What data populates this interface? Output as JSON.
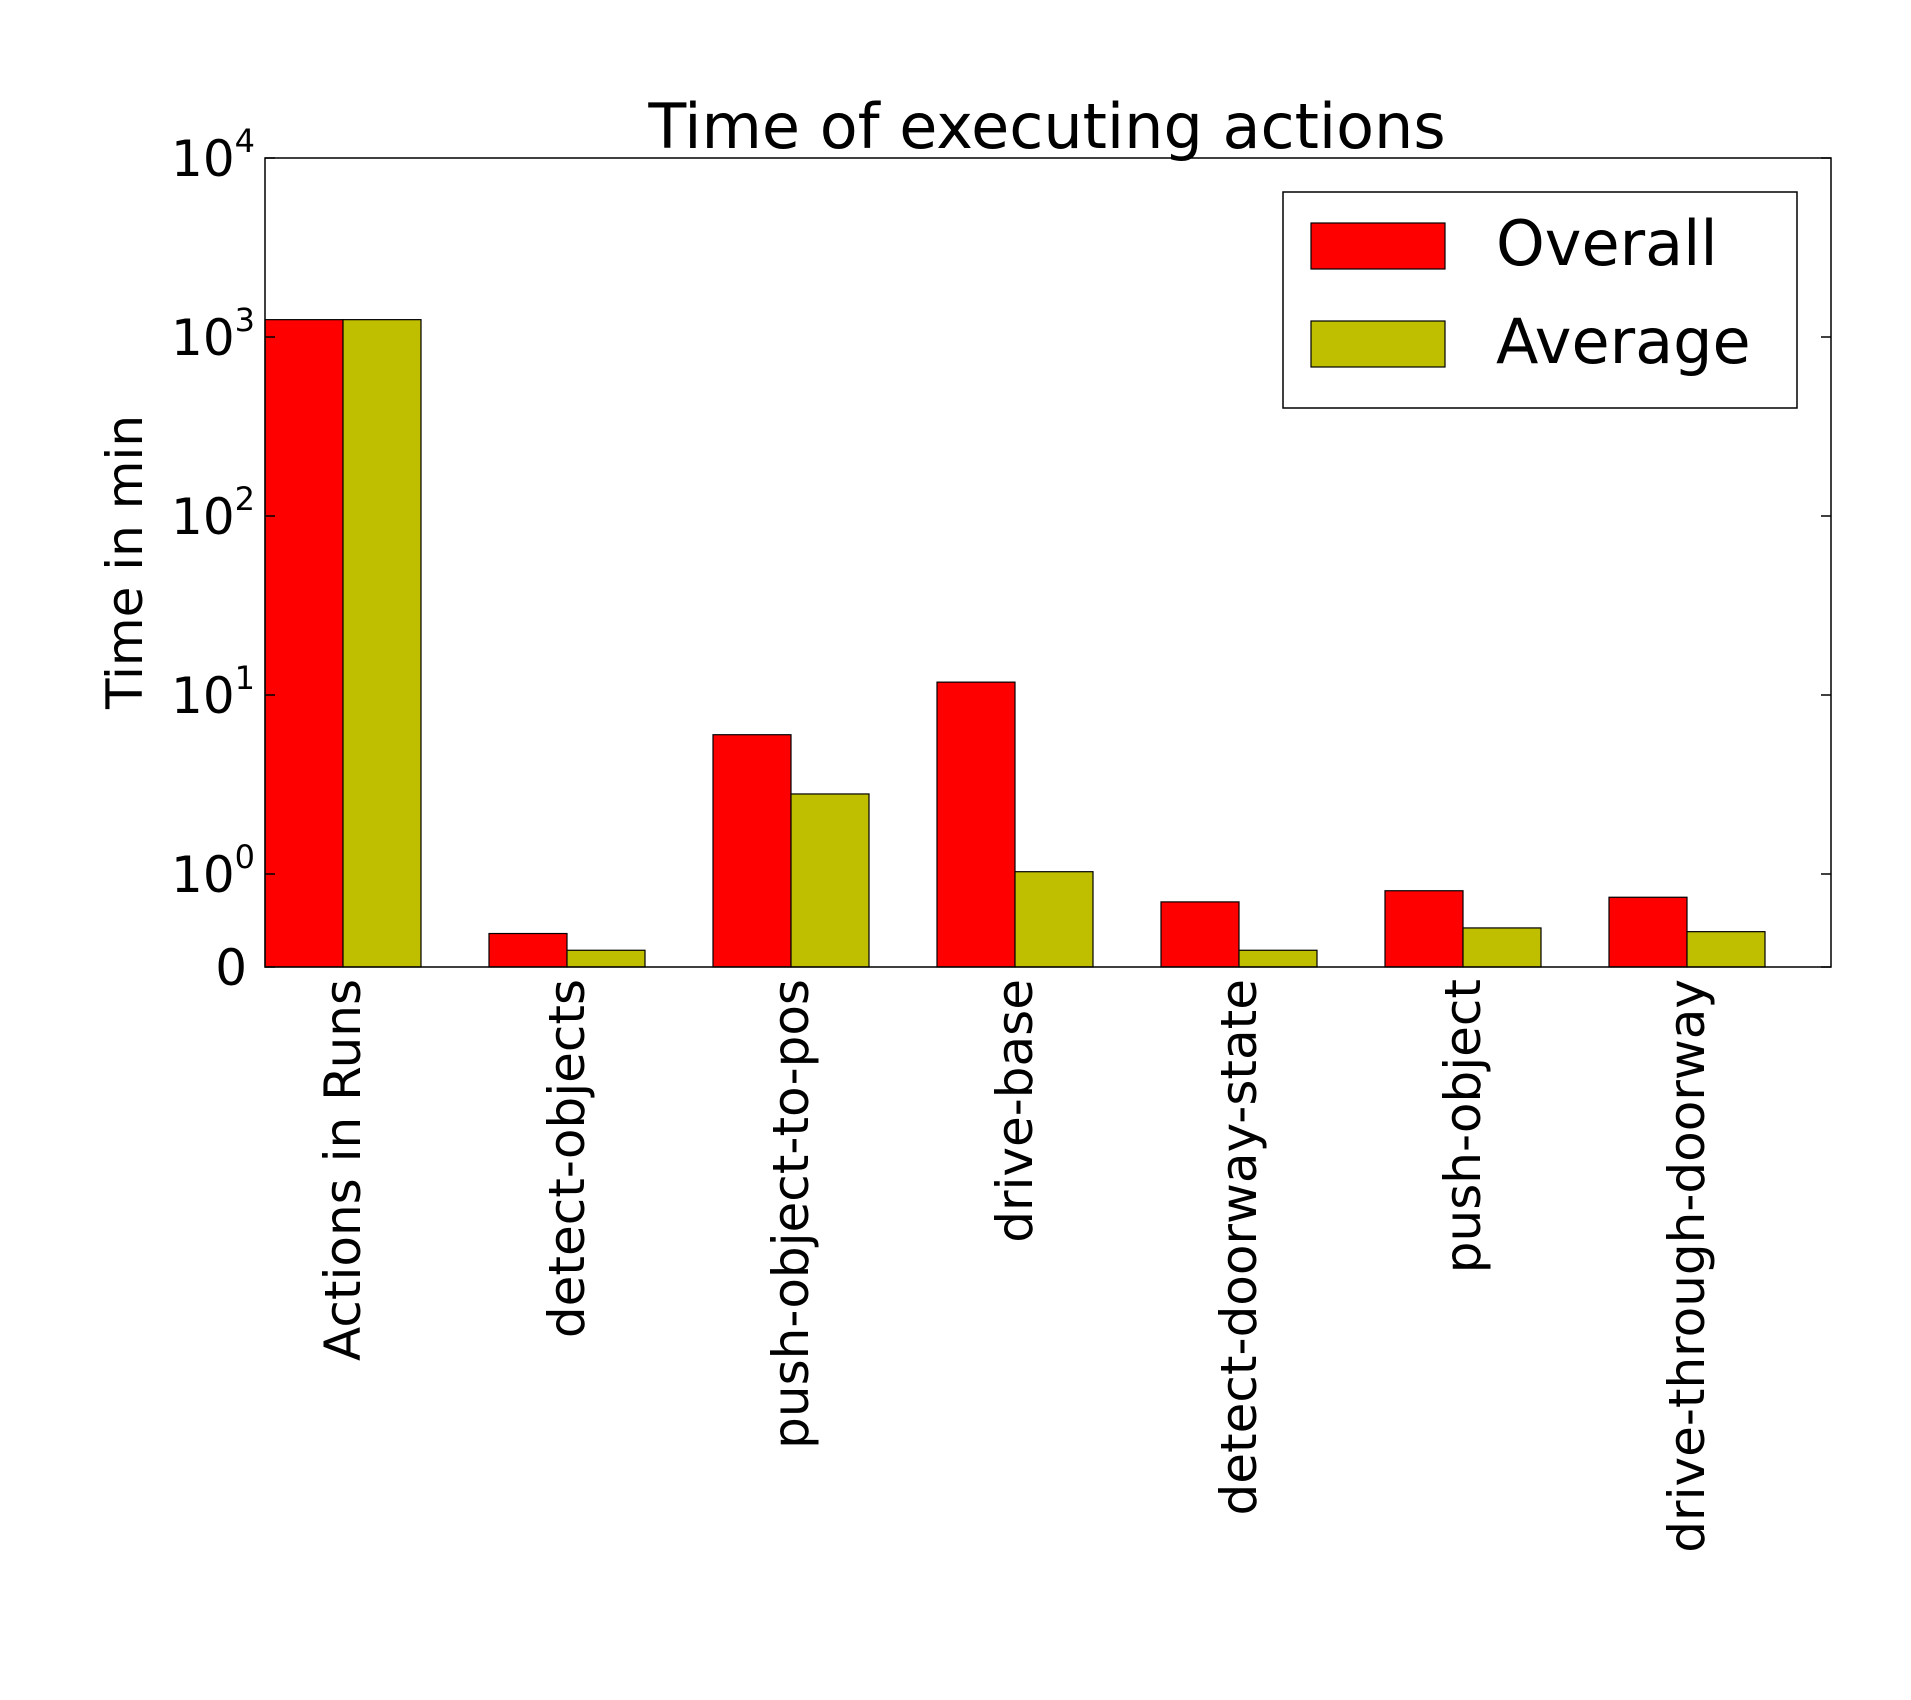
{
  "chart_data": {
    "type": "bar",
    "title": "Time of executing actions",
    "xlabel": "",
    "ylabel": "Time in min",
    "yscale": "symlog",
    "linthresh": 1,
    "ylim": [
      0,
      10000
    ],
    "yticks": [
      {
        "value": 0,
        "base": "0",
        "exp": ""
      },
      {
        "value": 1,
        "base": "10",
        "exp": "0"
      },
      {
        "value": 10,
        "base": "10",
        "exp": "1"
      },
      {
        "value": 100,
        "base": "10",
        "exp": "2"
      },
      {
        "value": 1000,
        "base": "10",
        "exp": "3"
      },
      {
        "value": 10000,
        "base": "10",
        "exp": "4"
      }
    ],
    "categories": [
      "Actions in Runs",
      "detect-objects",
      "push-object-to-pos",
      "drive-base",
      "detect-doorway-state",
      "push-object",
      "drive-through-doorway"
    ],
    "series": [
      {
        "name": "Overall",
        "color": "#ff0000",
        "values": [
          1250,
          0.36,
          6.0,
          11.8,
          0.7,
          0.82,
          0.75
        ]
      },
      {
        "name": "Average",
        "color": "#bfbf00",
        "values": [
          1250,
          0.18,
          2.8,
          1.03,
          0.18,
          0.42,
          0.38
        ]
      }
    ],
    "legend": {
      "position": "top-right"
    },
    "grid": false
  }
}
